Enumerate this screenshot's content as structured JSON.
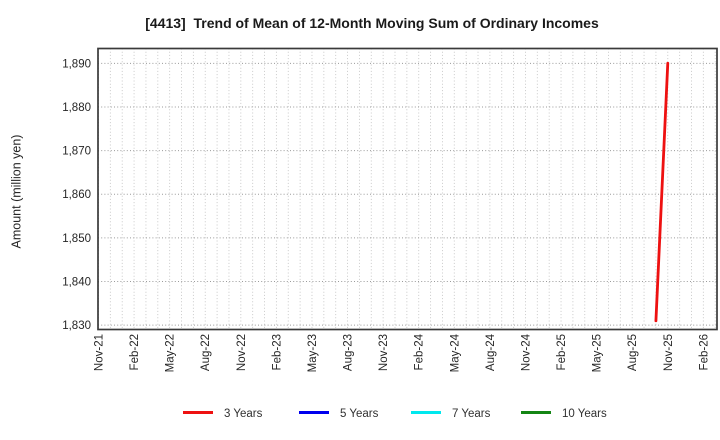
{
  "chart_data": {
    "type": "line",
    "title": "[4413]  Trend of Mean of 12-Month Moving Sum of Ordinary Incomes",
    "xlabel": "",
    "ylabel": "Amount (million yen)",
    "x_axis": {
      "tick_labels": [
        "Nov-21",
        "Feb-22",
        "May-22",
        "Aug-22",
        "Nov-22",
        "Feb-23",
        "May-23",
        "Aug-23",
        "Nov-23",
        "Feb-24",
        "May-24",
        "Aug-24",
        "Nov-24",
        "Feb-25",
        "May-25",
        "Aug-25",
        "Nov-25",
        "Feb-26"
      ],
      "months_between_ticks": 3,
      "extra_unlabeled_months_right": 1,
      "gridlines": "every month, dotted"
    },
    "y_axis": {
      "ticks": [
        1830,
        1840,
        1850,
        1860,
        1870,
        1880,
        1890
      ],
      "tick_labels": [
        "1,830",
        "1,840",
        "1,850",
        "1,860",
        "1,870",
        "1,880",
        "1,890"
      ],
      "ylim": [
        1829.0,
        1893.4
      ],
      "gridlines": "every tick, dotted"
    },
    "legend_position": "bottom",
    "series": [
      {
        "name": "3 Years",
        "color": "#ee1111",
        "points": [
          {
            "month": "Oct-25",
            "month_index": 47,
            "value": 1831
          },
          {
            "month": "Nov-25",
            "month_index": 48,
            "value": 1890
          }
        ]
      },
      {
        "name": "5 Years",
        "color": "#0000ee",
        "points": []
      },
      {
        "name": "7 Years",
        "color": "#00e8ee",
        "points": []
      },
      {
        "name": "10 Years",
        "color": "#148514",
        "points": []
      }
    ],
    "frame_color": "#3a3a3a",
    "grid_minor_color": "#c4c4c4",
    "grid_major_color": "#9a9a9a"
  }
}
